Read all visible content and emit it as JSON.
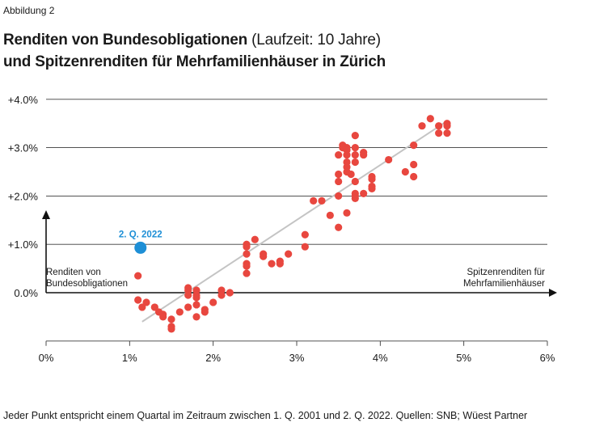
{
  "figure_label": "Abbildung 2",
  "title_bold_1": "Renditen von Bundesobligationen",
  "title_light": "(Laufzeit: 10 Jahre)",
  "title_bold_2": "und Spitzenrenditen für Mehrfamilienhäuser in Zürich",
  "footnote": "Jeder Punkt entspricht einem Quartal im Zeitraum zwischen 1. Q. 2001 und 2. Q. 2022. Quellen: SNB; Wüest Partner",
  "chart_data": {
    "type": "scatter",
    "xlabel": "Spitzenrenditen für Mehrfamilienhäuser",
    "ylabel": "Renditen von Bundesobligationen",
    "xlim": [
      0,
      6
    ],
    "ylim": [
      -1,
      4
    ],
    "x_ticks": [
      {
        "value": 0,
        "label": "0%"
      },
      {
        "value": 1,
        "label": "1%"
      },
      {
        "value": 2,
        "label": "2%"
      },
      {
        "value": 3,
        "label": "3%"
      },
      {
        "value": 4,
        "label": "4%"
      },
      {
        "value": 5,
        "label": "5%"
      },
      {
        "value": 6,
        "label": "6%"
      }
    ],
    "y_ticks": [
      {
        "value": 0,
        "label": "0.0%"
      },
      {
        "value": 1,
        "label": "+1.0%"
      },
      {
        "value": 2,
        "label": "+2.0%"
      },
      {
        "value": 3,
        "label": "+3.0%"
      },
      {
        "value": 4,
        "label": "+4.0%"
      }
    ],
    "grid": true,
    "series_color": "#e8473f",
    "highlight_color": "#1e8fd6",
    "trendline_color": "#c4c4c4",
    "trendline": [
      [
        1.15,
        -0.6
      ],
      [
        4.8,
        3.55
      ]
    ],
    "highlight": {
      "x": 1.13,
      "y": 0.93,
      "label": "2. Q. 2022"
    },
    "points": [
      [
        4.6,
        3.6
      ],
      [
        4.5,
        3.45
      ],
      [
        4.7,
        3.45
      ],
      [
        4.8,
        3.5
      ],
      [
        4.8,
        3.45
      ],
      [
        4.7,
        3.3
      ],
      [
        4.8,
        3.3
      ],
      [
        3.7,
        3.25
      ],
      [
        3.6,
        3.0
      ],
      [
        3.7,
        3.0
      ],
      [
        3.55,
        3.05
      ],
      [
        3.55,
        3.0
      ],
      [
        3.6,
        2.95
      ],
      [
        3.8,
        2.9
      ],
      [
        3.8,
        2.85
      ],
      [
        3.5,
        2.85
      ],
      [
        3.6,
        2.85
      ],
      [
        3.7,
        2.85
      ],
      [
        4.1,
        2.75
      ],
      [
        4.4,
        3.05
      ],
      [
        3.6,
        2.7
      ],
      [
        3.7,
        2.7
      ],
      [
        3.6,
        2.6
      ],
      [
        3.6,
        2.5
      ],
      [
        3.5,
        2.45
      ],
      [
        3.65,
        2.45
      ],
      [
        4.3,
        2.5
      ],
      [
        4.4,
        2.4
      ],
      [
        3.9,
        2.4
      ],
      [
        3.9,
        2.35
      ],
      [
        3.5,
        2.3
      ],
      [
        3.7,
        2.3
      ],
      [
        4.4,
        2.65
      ],
      [
        3.9,
        2.2
      ],
      [
        3.9,
        2.15
      ],
      [
        3.7,
        2.05
      ],
      [
        3.8,
        2.05
      ],
      [
        3.5,
        2.0
      ],
      [
        3.7,
        2.0
      ],
      [
        3.7,
        1.95
      ],
      [
        3.2,
        1.9
      ],
      [
        3.3,
        1.9
      ],
      [
        3.6,
        1.65
      ],
      [
        3.4,
        1.6
      ],
      [
        3.5,
        1.35
      ],
      [
        3.1,
        1.2
      ],
      [
        3.1,
        0.95
      ],
      [
        2.5,
        1.1
      ],
      [
        2.4,
        1.0
      ],
      [
        2.4,
        0.95
      ],
      [
        2.4,
        0.8
      ],
      [
        2.6,
        0.8
      ],
      [
        2.6,
        0.75
      ],
      [
        2.4,
        0.6
      ],
      [
        2.4,
        0.55
      ],
      [
        2.8,
        0.65
      ],
      [
        2.9,
        0.8
      ],
      [
        2.7,
        0.6
      ],
      [
        2.8,
        0.6
      ],
      [
        2.4,
        0.4
      ],
      [
        1.1,
        0.35
      ],
      [
        1.7,
        0.1
      ],
      [
        1.7,
        0.05
      ],
      [
        1.8,
        0.05
      ],
      [
        2.1,
        0.05
      ],
      [
        2.2,
        0.0
      ],
      [
        1.7,
        -0.05
      ],
      [
        1.8,
        -0.05
      ],
      [
        2.1,
        -0.05
      ],
      [
        1.8,
        -0.1
      ],
      [
        2.0,
        -0.2
      ],
      [
        1.7,
        -0.3
      ],
      [
        1.8,
        -0.25
      ],
      [
        1.1,
        -0.15
      ],
      [
        1.15,
        -0.3
      ],
      [
        1.2,
        -0.2
      ],
      [
        1.3,
        -0.3
      ],
      [
        1.35,
        -0.4
      ],
      [
        1.4,
        -0.45
      ],
      [
        1.4,
        -0.5
      ],
      [
        1.9,
        -0.35
      ],
      [
        1.9,
        -0.4
      ],
      [
        1.6,
        -0.4
      ],
      [
        1.5,
        -0.55
      ],
      [
        1.8,
        -0.5
      ],
      [
        1.5,
        -0.7
      ],
      [
        1.5,
        -0.75
      ]
    ]
  }
}
